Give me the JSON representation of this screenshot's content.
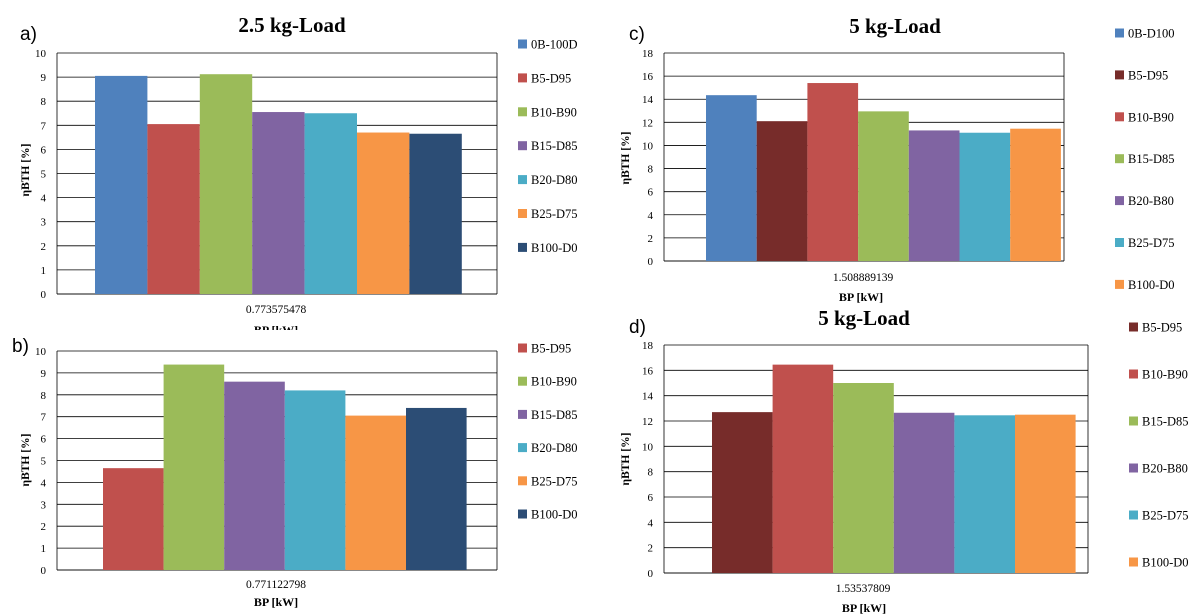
{
  "chart_data": [
    {
      "id": "a",
      "panel_label": "a)",
      "type": "bar",
      "title": "2.5 kg-Load",
      "xlabel": "BP [kW]",
      "ylabel": "ηBTH [%]",
      "categories": [
        "0.773575478"
      ],
      "ylim": [
        0,
        10
      ],
      "ytick_step": 1,
      "grid": true,
      "legend_position": "right",
      "series": [
        {
          "name": "0B-100D",
          "values": [
            9.05
          ],
          "color": "#4F81BD"
        },
        {
          "name": "B5-D95",
          "values": [
            7.05
          ],
          "color": "#C0504D"
        },
        {
          "name": "B10-B90",
          "values": [
            9.12
          ],
          "color": "#9BBB59"
        },
        {
          "name": "B15-D85",
          "values": [
            7.55
          ],
          "color": "#8064A2"
        },
        {
          "name": "B20-D80",
          "values": [
            7.5
          ],
          "color": "#4BACC6"
        },
        {
          "name": "B25-D75",
          "values": [
            6.7
          ],
          "color": "#F79646"
        },
        {
          "name": "B100-D0",
          "values": [
            6.65
          ],
          "color": "#2C4D75"
        }
      ]
    },
    {
      "id": "b",
      "panel_label": "b)",
      "type": "bar",
      "title": "",
      "xlabel": "BP [kW]",
      "ylabel": "ηBTH [%]",
      "categories": [
        "0.771122798"
      ],
      "ylim": [
        0,
        10
      ],
      "ytick_step": 1,
      "grid": true,
      "legend_position": "right",
      "series": [
        {
          "name": "B5-D95",
          "values": [
            4.65
          ],
          "color": "#C0504D"
        },
        {
          "name": "B10-B90",
          "values": [
            9.38
          ],
          "color": "#9BBB59"
        },
        {
          "name": "B15-D85",
          "values": [
            8.6
          ],
          "color": "#8064A2"
        },
        {
          "name": "B20-D80",
          "values": [
            8.2
          ],
          "color": "#4BACC6"
        },
        {
          "name": "B25-D75",
          "values": [
            7.05
          ],
          "color": "#F79646"
        },
        {
          "name": "B100-D0",
          "values": [
            7.4
          ],
          "color": "#2C4D75"
        }
      ]
    },
    {
      "id": "c",
      "panel_label": "c)",
      "type": "bar",
      "title": "5 kg-Load",
      "xlabel": "BP [kW]",
      "ylabel": "ηBTH [%]",
      "categories": [
        "1.508889139"
      ],
      "ylim": [
        0,
        18
      ],
      "ytick_step": 2,
      "grid": true,
      "legend_position": "right",
      "series": [
        {
          "name": "0B-D100",
          "values": [
            14.35
          ],
          "color": "#4F81BD"
        },
        {
          "name": "B5-D95",
          "values": [
            12.1
          ],
          "color": "#772C2A"
        },
        {
          "name": "B10-B90",
          "values": [
            15.4
          ],
          "color": "#C0504D"
        },
        {
          "name": "B15-D85",
          "values": [
            12.95
          ],
          "color": "#9BBB59"
        },
        {
          "name": "B20-B80",
          "values": [
            11.3
          ],
          "color": "#8064A2"
        },
        {
          "name": "B25-D75",
          "values": [
            11.1
          ],
          "color": "#4BACC6"
        },
        {
          "name": "B100-D0",
          "values": [
            11.45
          ],
          "color": "#F79646"
        }
      ]
    },
    {
      "id": "d",
      "panel_label": "d)",
      "type": "bar",
      "title": "5 kg-Load",
      "xlabel": "BP [kW]",
      "ylabel": "ηBTH [%]",
      "categories": [
        "1.53537809"
      ],
      "ylim": [
        0,
        18
      ],
      "ytick_step": 2,
      "grid": true,
      "legend_position": "right",
      "series": [
        {
          "name": "B5-D95",
          "values": [
            12.7
          ],
          "color": "#772C2A"
        },
        {
          "name": "B10-B90",
          "values": [
            16.45
          ],
          "color": "#C0504D"
        },
        {
          "name": "B15-D85",
          "values": [
            15.0
          ],
          "color": "#9BBB59"
        },
        {
          "name": "B20-B80",
          "values": [
            12.65
          ],
          "color": "#8064A2"
        },
        {
          "name": "B25-D75",
          "values": [
            12.45
          ],
          "color": "#4BACC6"
        },
        {
          "name": "B100-D0",
          "values": [
            12.5
          ],
          "color": "#F79646"
        }
      ]
    }
  ]
}
